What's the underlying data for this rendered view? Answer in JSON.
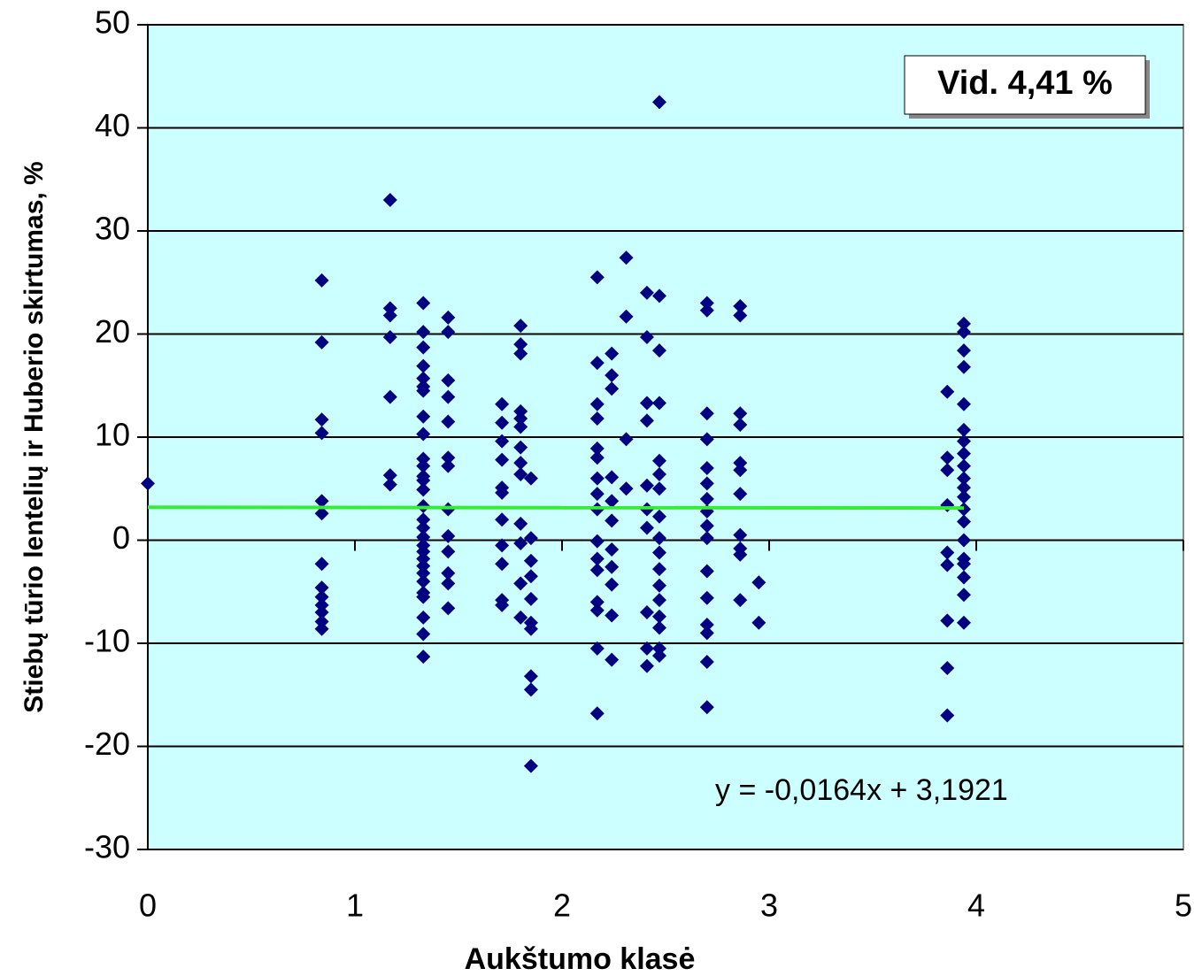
{
  "chart_data": {
    "type": "scatter",
    "xlabel": "Aukštumo klasė",
    "ylabel": "Stiebų tūrio lentelių ir Huberio skirtumas, %",
    "annotations": [
      "Vid. 4,41 %",
      "y = -0,0164x + 3,1921"
    ],
    "xlim": [
      0,
      5
    ],
    "xticks": [
      0,
      1,
      2,
      3,
      4,
      5
    ],
    "ylim": [
      -30,
      50
    ],
    "yticks": [
      -30,
      -20,
      -10,
      0,
      10,
      20,
      30,
      40,
      50
    ],
    "grid": true,
    "background": "#ccffff",
    "color": "#000080",
    "trendline": {
      "slope": -0.0164,
      "intercept": 3.1921,
      "xrange": [
        0,
        3.94
      ],
      "color": "#33ee33"
    },
    "x": [
      0,
      0.84,
      0.84,
      0.84,
      0.84,
      0.84,
      0.84,
      0.84,
      0.84,
      0.84,
      0.84,
      0.84,
      0.84,
      0.84,
      1.17,
      1.17,
      1.17,
      1.17,
      1.17,
      1.17,
      1.17,
      1.33,
      1.33,
      1.33,
      1.33,
      1.33,
      1.33,
      1.33,
      1.33,
      1.33,
      1.33,
      1.33,
      1.33,
      1.33,
      1.33,
      1.33,
      1.33,
      1.33,
      1.33,
      1.33,
      1.33,
      1.33,
      1.33,
      1.33,
      1.33,
      1.33,
      1.33,
      1.33,
      1.33,
      1.33,
      1.45,
      1.45,
      1.45,
      1.45,
      1.45,
      1.45,
      1.45,
      1.45,
      1.45,
      1.45,
      1.45,
      1.45,
      1.45,
      1.71,
      1.71,
      1.71,
      1.71,
      1.71,
      1.71,
      1.71,
      1.71,
      1.71,
      1.71,
      1.71,
      1.8,
      1.8,
      1.8,
      1.8,
      1.8,
      1.8,
      1.8,
      1.8,
      1.8,
      1.8,
      1.8,
      1.8,
      1.8,
      1.85,
      1.85,
      1.85,
      1.85,
      1.85,
      1.85,
      1.85,
      1.85,
      1.85,
      1.85,
      2.17,
      2.17,
      2.17,
      2.17,
      2.17,
      2.17,
      2.17,
      2.17,
      2.17,
      2.17,
      2.17,
      2.17,
      2.17,
      2.17,
      2.17,
      2.17,
      2.24,
      2.24,
      2.24,
      2.24,
      2.24,
      2.24,
      2.24,
      2.24,
      2.24,
      2.24,
      2.24,
      2.31,
      2.31,
      2.31,
      2.31,
      2.41,
      2.41,
      2.41,
      2.41,
      2.41,
      2.41,
      2.41,
      2.41,
      2.41,
      2.41,
      2.47,
      2.47,
      2.47,
      2.47,
      2.47,
      2.47,
      2.47,
      2.47,
      2.47,
      2.47,
      2.47,
      2.47,
      2.47,
      2.47,
      2.47,
      2.47,
      2.47,
      2.7,
      2.7,
      2.7,
      2.7,
      2.7,
      2.7,
      2.7,
      2.7,
      2.7,
      2.7,
      2.7,
      2.7,
      2.7,
      2.7,
      2.7,
      2.7,
      2.86,
      2.86,
      2.86,
      2.86,
      2.86,
      2.86,
      2.86,
      2.86,
      2.86,
      2.86,
      2.86,
      2.95,
      2.95,
      3.86,
      3.86,
      3.86,
      3.86,
      3.86,
      3.86,
      3.86,
      3.86,
      3.86,
      3.94,
      3.94,
      3.94,
      3.94,
      3.94,
      3.94,
      3.94,
      3.94,
      3.94,
      3.94,
      3.94,
      3.94,
      3.94,
      3.94,
      3.94,
      3.94,
      3.94,
      3.94,
      3.94,
      3.94
    ],
    "values": [
      5.5,
      25.2,
      19.2,
      11.7,
      10.4,
      3.8,
      2.6,
      -2.3,
      -4.6,
      -5.5,
      -6.3,
      -7.0,
      -7.9,
      -8.6,
      33,
      22.5,
      21.8,
      19.7,
      13.9,
      6.3,
      5.4,
      23.0,
      20.2,
      18.7,
      16.9,
      15.7,
      14.9,
      14.5,
      12.0,
      10.3,
      7.9,
      7.2,
      6.2,
      5.8,
      4.9,
      3.3,
      2.0,
      1.2,
      0.3,
      -0.5,
      -1.1,
      -1.8,
      -2.5,
      -3.2,
      -4.0,
      -5.1,
      -5.5,
      -7.5,
      -9.1,
      -11.3,
      21.6,
      20.2,
      15.5,
      13.9,
      11.5,
      8.0,
      7.2,
      3.0,
      0.4,
      -1.1,
      -3.2,
      -4.2,
      -6.6,
      13.2,
      11.4,
      9.6,
      7.8,
      5.1,
      4.6,
      2.0,
      -0.5,
      -2.3,
      -5.8,
      -6.3,
      20.8,
      19.0,
      18.1,
      12.5,
      11.8,
      11.0,
      9.0,
      7.5,
      6.4,
      1.6,
      -0.3,
      -4.2,
      -7.5,
      6.0,
      0.2,
      -2.0,
      -3.5,
      -5.7,
      -8.0,
      -8.6,
      -13.2,
      -14.5,
      -21.9,
      25.5,
      17.2,
      13.2,
      11.8,
      8.9,
      8.0,
      6.0,
      4.5,
      3.0,
      -0.1,
      -1.8,
      -2.9,
      -6.0,
      -6.8,
      -10.5,
      -16.8,
      18.1,
      16.0,
      14.7,
      6.1,
      3.8,
      1.9,
      -0.9,
      -2.6,
      -4.3,
      -7.3,
      -11.6,
      27.4,
      21.7,
      9.8,
      5.0,
      24.0,
      19.7,
      13.3,
      11.6,
      5.3,
      3.0,
      1.2,
      -7.0,
      -10.5,
      -12.2,
      42.5,
      23.7,
      18.4,
      13.3,
      7.7,
      6.4,
      5.0,
      2.3,
      0.2,
      -1.2,
      -2.8,
      -4.4,
      -5.8,
      -7.4,
      -8.5,
      -10.5,
      -11.2,
      23.0,
      22.3,
      12.3,
      9.8,
      7.0,
      5.5,
      4.0,
      2.8,
      1.4,
      0.2,
      -3.0,
      -5.6,
      -8.2,
      -9.0,
      -11.8,
      -16.2,
      22.7,
      21.8,
      12.3,
      11.2,
      7.5,
      6.8,
      4.5,
      0.5,
      -0.8,
      -1.4,
      -5.8,
      -4.1,
      -8.0,
      14.4,
      8.0,
      6.8,
      3.4,
      -1.2,
      -2.4,
      -7.8,
      -12.4,
      -17.0,
      21.0,
      20.2,
      18.4,
      16.8,
      13.2,
      10.7,
      9.6,
      8.4,
      7.2,
      6.0,
      5.1,
      4.2,
      3.0,
      1.8,
      0.0,
      -1.8,
      -2.3,
      -3.6,
      -5.3,
      -8.0
    ]
  }
}
